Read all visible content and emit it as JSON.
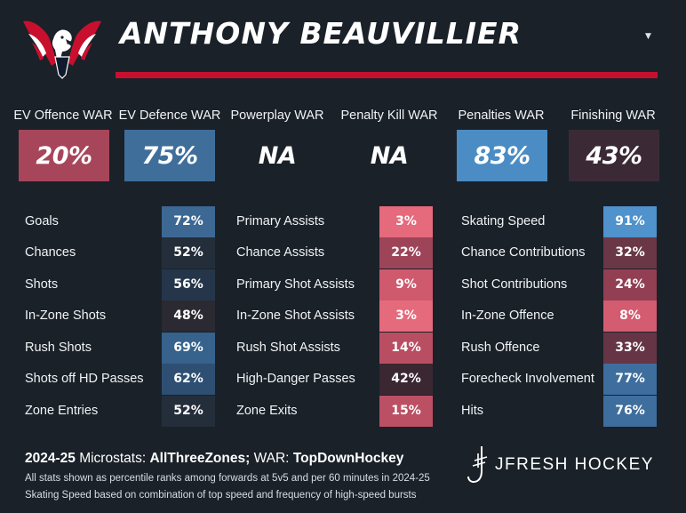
{
  "header": {
    "player_name": "ANTHONY BEAUVILLIER",
    "menu_icon": "caret-down-icon",
    "logo_icon": "capitals-eagle-logo",
    "accent_color": "#c8102e"
  },
  "war": [
    {
      "label": "EV Offence WAR",
      "value": "20%",
      "color": "#a7465a"
    },
    {
      "label": "EV Defence WAR",
      "value": "75%",
      "color": "#3f6e9b"
    },
    {
      "label": "Powerplay WAR",
      "value": "NA",
      "color": "transparent"
    },
    {
      "label": "Penalty Kill WAR",
      "value": "NA",
      "color": "transparent"
    },
    {
      "label": "Penalties WAR",
      "value": "83%",
      "color": "#4b8cc4"
    },
    {
      "label": "Finishing WAR",
      "value": "43%",
      "color": "#3b2a36"
    }
  ],
  "tables": [
    {
      "rows": [
        {
          "label": "Goals",
          "value": "72%",
          "color": "#3d6893"
        },
        {
          "label": "Chances",
          "value": "52%",
          "color": "#232e3a"
        },
        {
          "label": "Shots",
          "value": "56%",
          "color": "#25364a"
        },
        {
          "label": "In-Zone Shots",
          "value": "48%",
          "color": "#2b2a33"
        },
        {
          "label": "Rush Shots",
          "value": "69%",
          "color": "#36628c"
        },
        {
          "label": "Shots off HD Passes",
          "value": "62%",
          "color": "#2e4f72"
        },
        {
          "label": "Zone Entries",
          "value": "52%",
          "color": "#232e3a"
        }
      ]
    },
    {
      "rows": [
        {
          "label": "Primary Assists",
          "value": "3%",
          "color": "#e56a7c"
        },
        {
          "label": "Chance Assists",
          "value": "22%",
          "color": "#9e4458"
        },
        {
          "label": "Primary Shot Assists",
          "value": "9%",
          "color": "#cf5a6e"
        },
        {
          "label": "In-Zone Shot Assists",
          "value": "3%",
          "color": "#e56a7c"
        },
        {
          "label": "Rush Shot Assists",
          "value": "14%",
          "color": "#b94e63"
        },
        {
          "label": "High-Danger Passes",
          "value": "42%",
          "color": "#3a2732"
        },
        {
          "label": "Zone Exits",
          "value": "15%",
          "color": "#bb5065"
        }
      ]
    },
    {
      "rows": [
        {
          "label": "Skating Speed",
          "value": "91%",
          "color": "#4f92cc"
        },
        {
          "label": "Chance Contributions",
          "value": "32%",
          "color": "#6a3747"
        },
        {
          "label": "Shot Contributions",
          "value": "24%",
          "color": "#923f53"
        },
        {
          "label": "In-Zone Offence",
          "value": "8%",
          "color": "#d45c70"
        },
        {
          "label": "Rush Offence",
          "value": "33%",
          "color": "#663545"
        },
        {
          "label": "Forecheck Involvement",
          "value": "77%",
          "color": "#3e6e9e"
        },
        {
          "label": "Hits",
          "value": "76%",
          "color": "#3e6e9e"
        }
      ]
    }
  ],
  "footer": {
    "season": "2024-25",
    "microstats_label": "Microstats:",
    "microstats_source": "AllThreeZones;",
    "war_label": "WAR:",
    "war_source": "TopDownHockey",
    "note1": "All stats shown as percentile ranks among forwards at 5v5 and per 60 minutes in 2024-25",
    "note2": "Skating Speed based on combination of top speed and frequency of high-speed bursts",
    "brand": "JFRESH HOCKEY",
    "brand_icon": "jfresh-hockey-logo"
  }
}
